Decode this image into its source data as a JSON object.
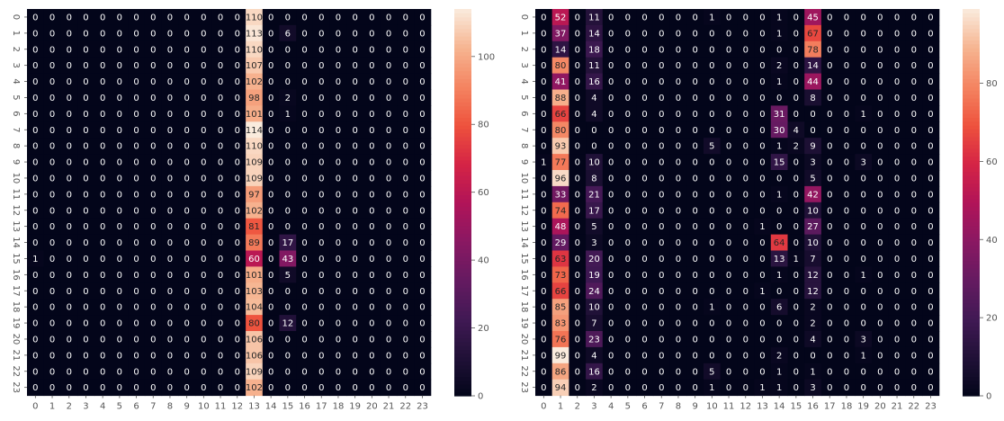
{
  "chart_data": [
    {
      "type": "heatmap",
      "x_categories": [
        "0",
        "1",
        "2",
        "3",
        "4",
        "5",
        "6",
        "7",
        "8",
        "9",
        "10",
        "11",
        "12",
        "13",
        "14",
        "15",
        "16",
        "17",
        "18",
        "19",
        "20",
        "21",
        "22",
        "23"
      ],
      "y_categories": [
        "0",
        "1",
        "2",
        "3",
        "4",
        "5",
        "6",
        "7",
        "8",
        "9",
        "10",
        "11",
        "12",
        "13",
        "14",
        "15",
        "16",
        "17",
        "18",
        "19",
        "20",
        "21",
        "22",
        "23"
      ],
      "values": [
        [
          0,
          0,
          0,
          0,
          0,
          0,
          0,
          0,
          0,
          0,
          0,
          0,
          0,
          110,
          0,
          0,
          0,
          0,
          0,
          0,
          0,
          0,
          0,
          0
        ],
        [
          0,
          0,
          0,
          0,
          0,
          0,
          0,
          0,
          0,
          0,
          0,
          0,
          0,
          113,
          0,
          6,
          0,
          0,
          0,
          0,
          0,
          0,
          0,
          0
        ],
        [
          0,
          0,
          0,
          0,
          0,
          0,
          0,
          0,
          0,
          0,
          0,
          0,
          0,
          110,
          0,
          0,
          0,
          0,
          0,
          0,
          0,
          0,
          0,
          0
        ],
        [
          0,
          0,
          0,
          0,
          0,
          0,
          0,
          0,
          0,
          0,
          0,
          0,
          0,
          107,
          0,
          0,
          0,
          0,
          0,
          0,
          0,
          0,
          0,
          0
        ],
        [
          0,
          0,
          0,
          0,
          0,
          0,
          0,
          0,
          0,
          0,
          0,
          0,
          0,
          102,
          0,
          0,
          0,
          0,
          0,
          0,
          0,
          0,
          0,
          0
        ],
        [
          0,
          0,
          0,
          0,
          0,
          0,
          0,
          0,
          0,
          0,
          0,
          0,
          0,
          98,
          0,
          2,
          0,
          0,
          0,
          0,
          0,
          0,
          0,
          0
        ],
        [
          0,
          0,
          0,
          0,
          0,
          0,
          0,
          0,
          0,
          0,
          0,
          0,
          0,
          101,
          0,
          1,
          0,
          0,
          0,
          0,
          0,
          0,
          0,
          0
        ],
        [
          0,
          0,
          0,
          0,
          0,
          0,
          0,
          0,
          0,
          0,
          0,
          0,
          0,
          114,
          0,
          0,
          0,
          0,
          0,
          0,
          0,
          0,
          0,
          0
        ],
        [
          0,
          0,
          0,
          0,
          0,
          0,
          0,
          0,
          0,
          0,
          0,
          0,
          0,
          110,
          0,
          0,
          0,
          0,
          0,
          0,
          0,
          0,
          0,
          0
        ],
        [
          0,
          0,
          0,
          0,
          0,
          0,
          0,
          0,
          0,
          0,
          0,
          0,
          0,
          109,
          0,
          0,
          0,
          0,
          0,
          0,
          0,
          0,
          0,
          0
        ],
        [
          0,
          0,
          0,
          0,
          0,
          0,
          0,
          0,
          0,
          0,
          0,
          0,
          0,
          109,
          0,
          0,
          0,
          0,
          0,
          0,
          0,
          0,
          0,
          0
        ],
        [
          0,
          0,
          0,
          0,
          0,
          0,
          0,
          0,
          0,
          0,
          0,
          0,
          0,
          97,
          0,
          0,
          0,
          0,
          0,
          0,
          0,
          0,
          0,
          0
        ],
        [
          0,
          0,
          0,
          0,
          0,
          0,
          0,
          0,
          0,
          0,
          0,
          0,
          0,
          102,
          0,
          0,
          0,
          0,
          0,
          0,
          0,
          0,
          0,
          0
        ],
        [
          0,
          0,
          0,
          0,
          0,
          0,
          0,
          0,
          0,
          0,
          0,
          0,
          0,
          81,
          0,
          0,
          0,
          0,
          0,
          0,
          0,
          0,
          0,
          0
        ],
        [
          0,
          0,
          0,
          0,
          0,
          0,
          0,
          0,
          0,
          0,
          0,
          0,
          0,
          89,
          0,
          17,
          0,
          0,
          0,
          0,
          0,
          0,
          0,
          0
        ],
        [
          1,
          0,
          0,
          0,
          0,
          0,
          0,
          0,
          0,
          0,
          0,
          0,
          0,
          60,
          0,
          43,
          0,
          0,
          0,
          0,
          0,
          0,
          0,
          0
        ],
        [
          0,
          0,
          0,
          0,
          0,
          0,
          0,
          0,
          0,
          0,
          0,
          0,
          0,
          101,
          0,
          5,
          0,
          0,
          0,
          0,
          0,
          0,
          0,
          0
        ],
        [
          0,
          0,
          0,
          0,
          0,
          0,
          0,
          0,
          0,
          0,
          0,
          0,
          0,
          103,
          0,
          0,
          0,
          0,
          0,
          0,
          0,
          0,
          0,
          0
        ],
        [
          0,
          0,
          0,
          0,
          0,
          0,
          0,
          0,
          0,
          0,
          0,
          0,
          0,
          104,
          0,
          0,
          0,
          0,
          0,
          0,
          0,
          0,
          0,
          0
        ],
        [
          0,
          0,
          0,
          0,
          0,
          0,
          0,
          0,
          0,
          0,
          0,
          0,
          0,
          80,
          0,
          12,
          0,
          0,
          0,
          0,
          0,
          0,
          0,
          0
        ],
        [
          0,
          0,
          0,
          0,
          0,
          0,
          0,
          0,
          0,
          0,
          0,
          0,
          0,
          106,
          0,
          0,
          0,
          0,
          0,
          0,
          0,
          0,
          0,
          0
        ],
        [
          0,
          0,
          0,
          0,
          0,
          0,
          0,
          0,
          0,
          0,
          0,
          0,
          0,
          106,
          0,
          0,
          0,
          0,
          0,
          0,
          0,
          0,
          0,
          0
        ],
        [
          0,
          0,
          0,
          0,
          0,
          0,
          0,
          0,
          0,
          0,
          0,
          0,
          0,
          109,
          0,
          0,
          0,
          0,
          0,
          0,
          0,
          0,
          0,
          0
        ],
        [
          0,
          0,
          0,
          0,
          0,
          0,
          0,
          0,
          0,
          0,
          0,
          0,
          0,
          102,
          0,
          0,
          0,
          0,
          0,
          0,
          0,
          0,
          0,
          0
        ]
      ],
      "colorbar": {
        "min": 0,
        "max": 114,
        "ticks": [
          0,
          20,
          40,
          60,
          80,
          100
        ]
      },
      "colormap": "rocket",
      "annotations": true,
      "grid": false,
      "title": "",
      "xlabel": "",
      "ylabel": ""
    },
    {
      "type": "heatmap",
      "x_categories": [
        "0",
        "1",
        "2",
        "3",
        "4",
        "5",
        "6",
        "7",
        "8",
        "9",
        "10",
        "11",
        "12",
        "13",
        "14",
        "15",
        "16",
        "17",
        "18",
        "19",
        "20",
        "21",
        "22",
        "23"
      ],
      "y_categories": [
        "0",
        "1",
        "2",
        "3",
        "4",
        "5",
        "6",
        "7",
        "8",
        "9",
        "10",
        "11",
        "12",
        "13",
        "14",
        "15",
        "16",
        "17",
        "18",
        "19",
        "20",
        "21",
        "22",
        "23"
      ],
      "values": [
        [
          0,
          52,
          0,
          11,
          0,
          0,
          0,
          0,
          0,
          0,
          1,
          0,
          0,
          0,
          1,
          0,
          45,
          0,
          0,
          0,
          0,
          0,
          0,
          0
        ],
        [
          0,
          37,
          0,
          14,
          0,
          0,
          0,
          0,
          0,
          0,
          0,
          0,
          0,
          0,
          1,
          0,
          67,
          0,
          0,
          0,
          0,
          0,
          0,
          0
        ],
        [
          0,
          14,
          0,
          18,
          0,
          0,
          0,
          0,
          0,
          0,
          0,
          0,
          0,
          0,
          0,
          0,
          78,
          0,
          0,
          0,
          0,
          0,
          0,
          0
        ],
        [
          0,
          80,
          0,
          11,
          0,
          0,
          0,
          0,
          0,
          0,
          0,
          0,
          0,
          0,
          2,
          0,
          14,
          0,
          0,
          0,
          0,
          0,
          0,
          0
        ],
        [
          0,
          41,
          0,
          16,
          0,
          0,
          0,
          0,
          0,
          0,
          0,
          0,
          0,
          0,
          1,
          0,
          44,
          0,
          0,
          0,
          0,
          0,
          0,
          0
        ],
        [
          0,
          88,
          0,
          4,
          0,
          0,
          0,
          0,
          0,
          0,
          0,
          0,
          0,
          0,
          0,
          0,
          8,
          0,
          0,
          0,
          0,
          0,
          0,
          0
        ],
        [
          0,
          66,
          0,
          4,
          0,
          0,
          0,
          0,
          0,
          0,
          0,
          0,
          0,
          0,
          31,
          0,
          0,
          0,
          0,
          1,
          0,
          0,
          0,
          0
        ],
        [
          0,
          80,
          0,
          0,
          0,
          0,
          0,
          0,
          0,
          0,
          0,
          0,
          0,
          0,
          30,
          4,
          0,
          0,
          0,
          0,
          0,
          0,
          0,
          0
        ],
        [
          0,
          93,
          0,
          0,
          0,
          0,
          0,
          0,
          0,
          0,
          5,
          0,
          0,
          0,
          1,
          2,
          9,
          0,
          0,
          0,
          0,
          0,
          0,
          0
        ],
        [
          1,
          77,
          0,
          10,
          0,
          0,
          0,
          0,
          0,
          0,
          0,
          0,
          0,
          0,
          15,
          0,
          3,
          0,
          0,
          3,
          0,
          0,
          0,
          0
        ],
        [
          0,
          96,
          0,
          8,
          0,
          0,
          0,
          0,
          0,
          0,
          0,
          0,
          0,
          0,
          0,
          0,
          5,
          0,
          0,
          0,
          0,
          0,
          0,
          0
        ],
        [
          0,
          33,
          0,
          21,
          0,
          0,
          0,
          0,
          0,
          0,
          0,
          0,
          0,
          0,
          1,
          0,
          42,
          0,
          0,
          0,
          0,
          0,
          0,
          0
        ],
        [
          0,
          74,
          0,
          17,
          0,
          0,
          0,
          0,
          0,
          0,
          0,
          0,
          0,
          0,
          0,
          0,
          10,
          0,
          0,
          0,
          0,
          0,
          0,
          0
        ],
        [
          0,
          48,
          0,
          5,
          0,
          0,
          0,
          0,
          0,
          0,
          0,
          0,
          0,
          1,
          0,
          0,
          27,
          0,
          0,
          0,
          0,
          0,
          0,
          0
        ],
        [
          0,
          29,
          0,
          3,
          0,
          0,
          0,
          0,
          0,
          0,
          0,
          0,
          0,
          0,
          64,
          0,
          10,
          0,
          0,
          0,
          0,
          0,
          0,
          0
        ],
        [
          0,
          63,
          0,
          20,
          0,
          0,
          0,
          0,
          0,
          0,
          0,
          0,
          0,
          0,
          13,
          1,
          7,
          0,
          0,
          0,
          0,
          0,
          0,
          0
        ],
        [
          0,
          73,
          0,
          19,
          0,
          0,
          0,
          0,
          0,
          0,
          0,
          0,
          0,
          0,
          1,
          0,
          12,
          0,
          0,
          1,
          0,
          0,
          0,
          0
        ],
        [
          0,
          66,
          0,
          24,
          0,
          0,
          0,
          0,
          0,
          0,
          0,
          0,
          0,
          1,
          0,
          0,
          12,
          0,
          0,
          0,
          0,
          0,
          0,
          0
        ],
        [
          0,
          85,
          0,
          10,
          0,
          0,
          0,
          0,
          0,
          0,
          1,
          0,
          0,
          0,
          6,
          0,
          2,
          0,
          0,
          0,
          0,
          0,
          0,
          0
        ],
        [
          0,
          83,
          0,
          7,
          0,
          0,
          0,
          0,
          0,
          0,
          0,
          0,
          0,
          0,
          0,
          0,
          2,
          0,
          0,
          0,
          0,
          0,
          0,
          0
        ],
        [
          0,
          76,
          0,
          23,
          0,
          0,
          0,
          0,
          0,
          0,
          0,
          0,
          0,
          0,
          0,
          0,
          4,
          0,
          0,
          3,
          0,
          0,
          0,
          0
        ],
        [
          0,
          99,
          0,
          4,
          0,
          0,
          0,
          0,
          0,
          0,
          0,
          0,
          0,
          0,
          2,
          0,
          0,
          0,
          0,
          1,
          0,
          0,
          0,
          0
        ],
        [
          0,
          86,
          0,
          16,
          0,
          0,
          0,
          0,
          0,
          0,
          5,
          0,
          0,
          0,
          1,
          0,
          1,
          0,
          0,
          0,
          0,
          0,
          0,
          0
        ],
        [
          0,
          94,
          0,
          2,
          0,
          0,
          0,
          0,
          0,
          0,
          1,
          0,
          0,
          1,
          1,
          0,
          3,
          0,
          0,
          0,
          0,
          0,
          0,
          0
        ]
      ],
      "colorbar": {
        "min": 0,
        "max": 99,
        "ticks": [
          0,
          20,
          40,
          60,
          80
        ]
      },
      "colormap": "rocket",
      "annotations": true,
      "grid": false,
      "title": "",
      "xlabel": "",
      "ylabel": ""
    }
  ]
}
